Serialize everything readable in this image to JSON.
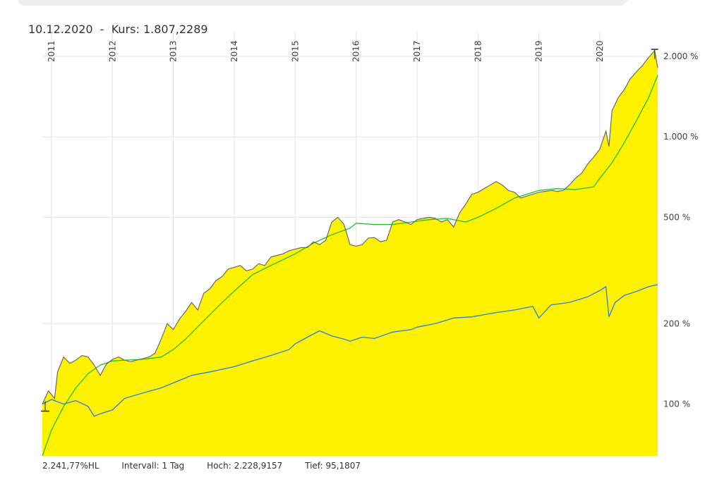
{
  "header": {
    "date": "10.12.2020",
    "separator": "-",
    "price_label": "Kurs: 1.807,2289"
  },
  "footer": {
    "change": "2.241,77%HL",
    "interval": "Intervall: 1 Tag",
    "high": "Hoch: 2.228,9157",
    "low": "Tief: 95,1807"
  },
  "colors": {
    "fill": "#fff200",
    "price_line": "#6a6a6a",
    "moving_average": "#22c122",
    "benchmark": "#2a7fd4",
    "grid": "#e4e4e4"
  },
  "chart_data": {
    "type": "area",
    "y_scale": "log",
    "ylim": [
      64,
      2300
    ],
    "xlim": [
      2010.85,
      2020.95
    ],
    "x_tick_labels": [
      "2011",
      "2012",
      "2013",
      "2014",
      "2015",
      "2016",
      "2017",
      "2018",
      "2019",
      "2020"
    ],
    "x_tick_positions": [
      2011,
      2012,
      2013,
      2014,
      2015,
      2016,
      2017,
      2018,
      2019,
      2020
    ],
    "y_ticks": [
      {
        "value": 100,
        "label": "100 %"
      },
      {
        "value": 200,
        "label": "200 %"
      },
      {
        "value": 500,
        "label": "500 %"
      },
      {
        "value": 1000,
        "label": "1.000 %"
      },
      {
        "value": 2000,
        "label": "2.000 %"
      }
    ],
    "grid": true,
    "series": [
      {
        "role": "price",
        "x": [
          2010.85,
          2010.95,
          2011.05,
          2011.1,
          2011.2,
          2011.3,
          2011.4,
          2011.5,
          2011.6,
          2011.7,
          2011.8,
          2011.9,
          2012.0,
          2012.1,
          2012.2,
          2012.3,
          2012.4,
          2012.5,
          2012.6,
          2012.7,
          2012.8,
          2012.9,
          2013.0,
          2013.1,
          2013.2,
          2013.3,
          2013.4,
          2013.5,
          2013.6,
          2013.7,
          2013.8,
          2013.9,
          2014.0,
          2014.1,
          2014.2,
          2014.3,
          2014.4,
          2014.5,
          2014.6,
          2014.7,
          2014.8,
          2014.9,
          2015.0,
          2015.1,
          2015.2,
          2015.3,
          2015.4,
          2015.5,
          2015.6,
          2015.7,
          2015.8,
          2015.9,
          2016.0,
          2016.1,
          2016.2,
          2016.3,
          2016.4,
          2016.5,
          2016.6,
          2016.7,
          2016.8,
          2016.9,
          2017.0,
          2017.1,
          2017.2,
          2017.3,
          2017.4,
          2017.5,
          2017.6,
          2017.7,
          2017.8,
          2017.9,
          2018.0,
          2018.1,
          2018.2,
          2018.3,
          2018.4,
          2018.5,
          2018.6,
          2018.7,
          2018.8,
          2018.9,
          2019.0,
          2019.1,
          2019.2,
          2019.3,
          2019.4,
          2019.5,
          2019.6,
          2019.7,
          2019.8,
          2019.9,
          2020.0,
          2020.1,
          2020.15,
          2020.2,
          2020.3,
          2020.4,
          2020.5,
          2020.6,
          2020.7,
          2020.8,
          2020.9,
          2020.95
        ],
        "values": [
          100,
          112,
          105,
          132,
          150,
          142,
          146,
          152,
          150,
          140,
          128,
          141,
          147,
          150,
          146,
          144,
          146,
          148,
          150,
          155,
          175,
          200,
          190,
          208,
          222,
          240,
          225,
          260,
          270,
          290,
          300,
          320,
          325,
          330,
          315,
          320,
          335,
          330,
          355,
          360,
          365,
          375,
          380,
          385,
          385,
          405,
          395,
          410,
          480,
          500,
          470,
          395,
          390,
          395,
          418,
          420,
          405,
          410,
          480,
          490,
          480,
          470,
          490,
          495,
          500,
          495,
          480,
          490,
          460,
          520,
          560,
          610,
          620,
          640,
          660,
          680,
          660,
          630,
          620,
          590,
          600,
          610,
          620,
          625,
          630,
          625,
          630,
          660,
          700,
          730,
          790,
          840,
          900,
          1050,
          920,
          1250,
          1400,
          1500,
          1650,
          1750,
          1850,
          1980,
          2100,
          1810
        ]
      },
      {
        "role": "moving-average",
        "x": [
          2010.85,
          2011.0,
          2011.2,
          2011.4,
          2011.6,
          2011.8,
          2012.0,
          2012.2,
          2012.5,
          2012.8,
          2013.0,
          2013.2,
          2013.5,
          2013.8,
          2014.0,
          2014.3,
          2014.6,
          2015.0,
          2015.3,
          2015.6,
          2015.9,
          2016.0,
          2016.3,
          2016.6,
          2016.9,
          2017.2,
          2017.5,
          2017.8,
          2018.0,
          2018.3,
          2018.6,
          2019.0,
          2019.3,
          2019.6,
          2019.9,
          2020.0,
          2020.2,
          2020.4,
          2020.6,
          2020.8,
          2020.95
        ],
        "values": [
          64,
          80,
          98,
          115,
          130,
          140,
          145,
          146,
          147,
          150,
          160,
          175,
          205,
          240,
          265,
          305,
          330,
          365,
          400,
          430,
          455,
          475,
          470,
          470,
          480,
          490,
          495,
          480,
          500,
          540,
          590,
          630,
          640,
          635,
          650,
          700,
          800,
          950,
          1150,
          1400,
          1700
        ]
      },
      {
        "role": "benchmark",
        "x": [
          2010.85,
          2011.0,
          2011.2,
          2011.4,
          2011.6,
          2011.7,
          2011.8,
          2012.0,
          2012.2,
          2012.5,
          2012.8,
          2013.0,
          2013.3,
          2013.6,
          2014.0,
          2014.3,
          2014.6,
          2014.9,
          2015.0,
          2015.2,
          2015.4,
          2015.6,
          2015.8,
          2015.9,
          2016.1,
          2016.3,
          2016.6,
          2016.9,
          2017.0,
          2017.3,
          2017.6,
          2017.9,
          2018.1,
          2018.3,
          2018.6,
          2018.9,
          2019.0,
          2019.2,
          2019.5,
          2019.8,
          2020.0,
          2020.1,
          2020.15,
          2020.25,
          2020.4,
          2020.6,
          2020.8,
          2020.95
        ],
        "values": [
          100,
          104,
          100,
          103,
          98,
          90,
          92,
          95,
          105,
          110,
          115,
          120,
          128,
          132,
          138,
          145,
          152,
          160,
          168,
          178,
          188,
          180,
          175,
          172,
          178,
          176,
          186,
          190,
          194,
          200,
          210,
          212,
          216,
          220,
          225,
          232,
          210,
          235,
          240,
          252,
          266,
          275,
          212,
          240,
          255,
          264,
          275,
          280
        ]
      }
    ]
  }
}
